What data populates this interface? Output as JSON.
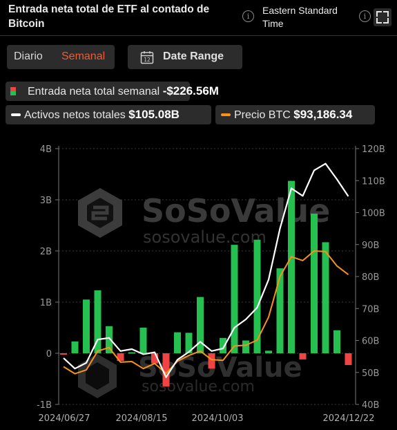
{
  "header": {
    "title": "Entrada neta total de ETF al contado de Bitcoin",
    "timezone": "Eastern Standard Time"
  },
  "tabs": {
    "daily": "Diario",
    "weekly": "Semanal",
    "active": "weekly"
  },
  "date_range_label": "Date Range",
  "legend": {
    "net_inflow_label": "Entrada neta total semanal",
    "net_inflow_value": "-$226.56M",
    "assets_label": "Activos netos totales",
    "assets_value": "$105.08B",
    "price_label": "Precio BTC",
    "price_value": "$93,186.34"
  },
  "watermark": {
    "brand": "SoSoValue",
    "url": "sosovalue.com"
  },
  "colors": {
    "inflow_positive": "#25c04f",
    "inflow_negative": "#ef4444",
    "assets_line": "#ffffff",
    "price_line": "#f7931a",
    "accent": "#ef5b34"
  },
  "chart_data": {
    "type": "bar",
    "x_tick_labels": [
      "2024/06/27",
      "2024/08/15",
      "2024/10/03",
      "2024/12/22"
    ],
    "left_axis": {
      "ticks": [
        "-1B",
        "0",
        "1B",
        "2B",
        "3B",
        "4B"
      ],
      "range": [
        -1,
        4
      ],
      "unit": "B USD"
    },
    "right_axis": {
      "ticks": [
        "40B",
        "50B",
        "60B",
        "70B",
        "80B",
        "90B",
        "100B",
        "110B",
        "120B"
      ],
      "range": [
        40,
        120
      ],
      "unit": "B USD"
    },
    "series": [
      {
        "name": "Entrada neta total semanal",
        "axis": "left",
        "type": "bar",
        "values": [
          -0.02,
          0.23,
          1.05,
          1.23,
          0.53,
          -0.15,
          0.02,
          0.5,
          -0.2,
          -0.65,
          0.41,
          0.4,
          1.1,
          -0.3,
          0.3,
          2.12,
          0.25,
          2.22,
          0.05,
          1.66,
          3.37,
          -0.12,
          2.73,
          2.17,
          0.45,
          -0.23
        ]
      },
      {
        "name": "Activos netos totales",
        "axis": "right",
        "type": "line",
        "values": [
          54.5,
          51.2,
          53.0,
          60.3,
          60.8,
          56.7,
          57.3,
          55.7,
          56.3,
          48.5,
          54.0,
          56.4,
          59.6,
          56.7,
          57.5,
          64.0,
          66.6,
          70.3,
          79.0,
          95.0,
          107.6,
          105.2,
          113.2,
          115.3,
          110.4,
          105.08
        ]
      },
      {
        "name": "Precio BTC",
        "axis": "right",
        "type": "line",
        "values": [
          51.8,
          49.6,
          50.8,
          56.7,
          57.8,
          53.2,
          53.4,
          51.2,
          52.8,
          49.7,
          53.5,
          55.3,
          56.7,
          54.0,
          53.8,
          58.3,
          58.5,
          60.1,
          67.3,
          80.0,
          86.2,
          85.0,
          88.0,
          87.8,
          83.3,
          80.6
        ]
      }
    ],
    "grid": "horizontal-dashed",
    "legend_placement": "top"
  }
}
